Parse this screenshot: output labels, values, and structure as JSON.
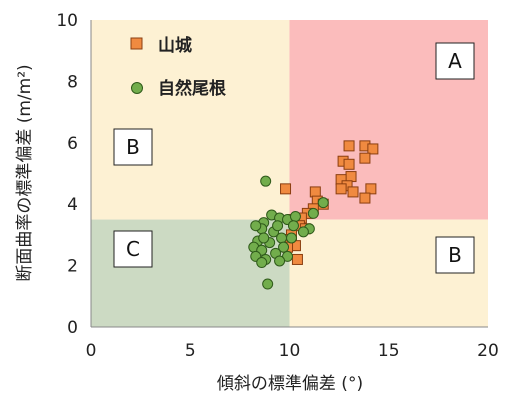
{
  "chart_data": {
    "type": "scatter",
    "title": "",
    "xlabel": "傾斜の標準偏差 (°)",
    "ylabel": "断面曲率の標準偏差 (m/m²)",
    "xlim": [
      0,
      20
    ],
    "ylim": [
      0,
      10
    ],
    "xticks": [
      "0",
      "5",
      "10",
      "15",
      "20"
    ],
    "yticks": [
      "0",
      "2",
      "4",
      "6",
      "8",
      "10"
    ],
    "grid": false,
    "legend_position": "top-left",
    "regions": [
      {
        "label": "A",
        "x": [
          10,
          20
        ],
        "y": [
          3.5,
          10
        ],
        "color": "#fbbcbc"
      },
      {
        "label": "B",
        "x": [
          0,
          10
        ],
        "y": [
          3.5,
          10
        ],
        "color": "#fdf1d3"
      },
      {
        "label": "B",
        "x": [
          10,
          20
        ],
        "y": [
          0,
          3.5
        ],
        "color": "#fdf1d3"
      },
      {
        "label": "C",
        "x": [
          0,
          10
        ],
        "y": [
          0,
          3.5
        ],
        "color": "#ccdac3"
      }
    ],
    "series": [
      {
        "name": "山城",
        "marker": "square",
        "color": "#f08a40",
        "points": [
          [
            13.0,
            5.9
          ],
          [
            13.8,
            5.9
          ],
          [
            14.2,
            5.8
          ],
          [
            12.7,
            5.4
          ],
          [
            13.0,
            5.3
          ],
          [
            13.8,
            5.5
          ],
          [
            13.1,
            4.9
          ],
          [
            12.6,
            4.8
          ],
          [
            12.9,
            4.6
          ],
          [
            12.6,
            4.5
          ],
          [
            13.2,
            4.4
          ],
          [
            14.1,
            4.5
          ],
          [
            13.8,
            4.2
          ],
          [
            11.3,
            4.4
          ],
          [
            11.4,
            4.1
          ],
          [
            11.7,
            4.0
          ],
          [
            9.8,
            4.5
          ],
          [
            11.2,
            3.85
          ],
          [
            10.9,
            3.7
          ],
          [
            10.6,
            3.55
          ],
          [
            10.2,
            3.5
          ],
          [
            10.5,
            3.3
          ],
          [
            10.8,
            3.2
          ],
          [
            10.1,
            3.0
          ],
          [
            9.9,
            2.85
          ],
          [
            10.3,
            2.65
          ],
          [
            9.9,
            2.6
          ],
          [
            10.4,
            2.2
          ]
        ]
      },
      {
        "name": "自然尾根",
        "marker": "circle",
        "color": "#72ad4c",
        "points": [
          [
            8.8,
            4.75
          ],
          [
            9.1,
            3.65
          ],
          [
            8.7,
            3.4
          ],
          [
            9.5,
            3.55
          ],
          [
            9.9,
            3.5
          ],
          [
            10.3,
            3.6
          ],
          [
            11.7,
            4.05
          ],
          [
            11.2,
            3.7
          ],
          [
            11.0,
            3.2
          ],
          [
            10.7,
            3.1
          ],
          [
            9.2,
            3.1
          ],
          [
            8.6,
            3.2
          ],
          [
            8.3,
            3.3
          ],
          [
            9.6,
            2.9
          ],
          [
            10.1,
            2.9
          ],
          [
            8.4,
            2.8
          ],
          [
            9.0,
            2.75
          ],
          [
            9.7,
            2.6
          ],
          [
            8.2,
            2.6
          ],
          [
            8.6,
            2.5
          ],
          [
            9.3,
            2.4
          ],
          [
            9.9,
            2.3
          ],
          [
            8.3,
            2.3
          ],
          [
            8.8,
            2.2
          ],
          [
            9.5,
            2.15
          ],
          [
            8.6,
            2.1
          ],
          [
            8.9,
            1.4
          ],
          [
            10.2,
            3.3
          ],
          [
            9.4,
            3.3
          ],
          [
            8.7,
            2.9
          ]
        ]
      }
    ]
  }
}
